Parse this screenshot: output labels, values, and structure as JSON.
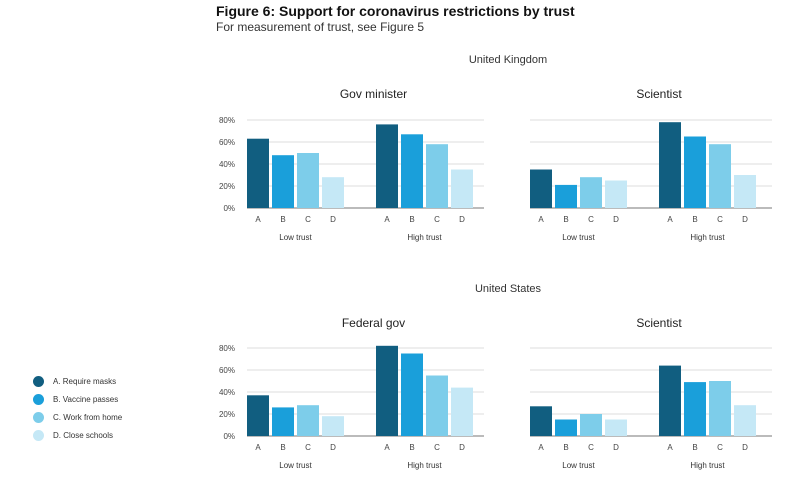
{
  "figure": {
    "title": "Figure 6: Support for coronavirus restrictions by trust",
    "subtitle": "For measurement of trust, see Figure 5"
  },
  "colors": {
    "A": "#115e80",
    "B": "#1a9fda",
    "C": "#7dcdea",
    "D": "#c5e8f6",
    "grid": "#bbbbbb",
    "baseline": "#777777"
  },
  "legend": [
    {
      "key": "A",
      "label": "A. Require masks"
    },
    {
      "key": "B",
      "label": "B. Vaccine passes"
    },
    {
      "key": "C",
      "label": "C. Work from home"
    },
    {
      "key": "D",
      "label": "D. Close schools"
    }
  ],
  "countries": [
    "United Kingdom",
    "United States"
  ],
  "chart_data": [
    {
      "type": "bar",
      "country": "United Kingdom",
      "title": "Gov minister",
      "groups": [
        "Low trust",
        "High trust"
      ],
      "categories": [
        "A",
        "B",
        "C",
        "D"
      ],
      "y_ticks": [
        "0%",
        "20%",
        "40%",
        "60%",
        "80%"
      ],
      "ylim": [
        0,
        80
      ],
      "series": [
        {
          "group": "Low trust",
          "values": [
            63,
            48,
            50,
            28
          ]
        },
        {
          "group": "High trust",
          "values": [
            76,
            67,
            58,
            35
          ]
        }
      ]
    },
    {
      "type": "bar",
      "country": "United Kingdom",
      "title": "Scientist",
      "groups": [
        "Low trust",
        "High trust"
      ],
      "categories": [
        "A",
        "B",
        "C",
        "D"
      ],
      "y_ticks": [],
      "ylim": [
        0,
        80
      ],
      "series": [
        {
          "group": "Low trust",
          "values": [
            35,
            21,
            28,
            25
          ]
        },
        {
          "group": "High trust",
          "values": [
            78,
            65,
            58,
            30
          ]
        }
      ]
    },
    {
      "type": "bar",
      "country": "United States",
      "title": "Federal gov",
      "groups": [
        "Low trust",
        "High trust"
      ],
      "categories": [
        "A",
        "B",
        "C",
        "D"
      ],
      "y_ticks": [
        "0%",
        "20%",
        "40%",
        "60%",
        "80%"
      ],
      "ylim": [
        0,
        80
      ],
      "series": [
        {
          "group": "Low trust",
          "values": [
            37,
            26,
            28,
            18
          ]
        },
        {
          "group": "High trust",
          "values": [
            82,
            75,
            55,
            44
          ]
        }
      ]
    },
    {
      "type": "bar",
      "country": "United States",
      "title": "Scientist",
      "groups": [
        "Low trust",
        "High trust"
      ],
      "categories": [
        "A",
        "B",
        "C",
        "D"
      ],
      "y_ticks": [],
      "ylim": [
        0,
        80
      ],
      "series": [
        {
          "group": "Low trust",
          "values": [
            27,
            15,
            20,
            15
          ]
        },
        {
          "group": "High trust",
          "values": [
            64,
            49,
            50,
            28
          ]
        }
      ]
    }
  ]
}
